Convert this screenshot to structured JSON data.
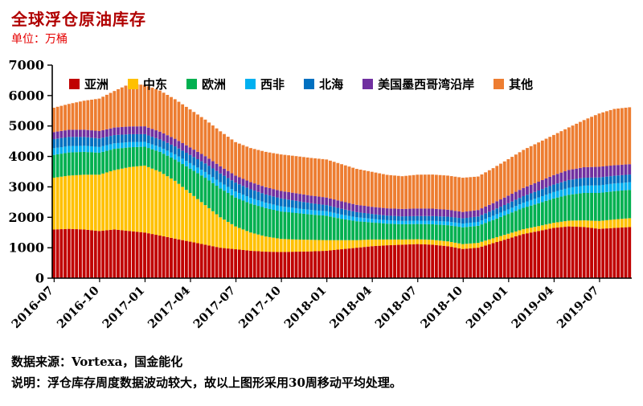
{
  "header": {
    "title": "全球浮仓原油库存",
    "unit": "单位：万桶",
    "accent_color": "#b00000"
  },
  "footnotes": {
    "source": "数据来源：Vortexa，国金能化",
    "note": "说明：浮仓库存周度数据波动较大，故以上图形采用30周移动平均处理。"
  },
  "chart_data": {
    "type": "area",
    "stacked": true,
    "title": "全球浮仓原油库存",
    "ylabel": "万桶",
    "ylim": [
      0,
      7000
    ],
    "y_ticks": [
      0,
      1000,
      2000,
      3000,
      4000,
      5000,
      6000,
      7000
    ],
    "grid": false,
    "legend_position": "top-inside",
    "x": [
      "2016-07",
      "2016-08",
      "2016-09",
      "2016-10",
      "2016-11",
      "2016-12",
      "2017-01",
      "2017-02",
      "2017-03",
      "2017-04",
      "2017-05",
      "2017-06",
      "2017-07",
      "2017-08",
      "2017-09",
      "2017-10",
      "2017-11",
      "2017-12",
      "2018-01",
      "2018-02",
      "2018-03",
      "2018-04",
      "2018-05",
      "2018-06",
      "2018-07",
      "2018-08",
      "2018-09",
      "2018-10",
      "2018-11",
      "2018-12",
      "2019-01",
      "2019-02",
      "2019-03",
      "2019-04",
      "2019-05",
      "2019-06",
      "2019-07",
      "2019-08",
      "2019-09"
    ],
    "x_tick_labels": [
      "2016-07",
      "2016-10",
      "2017-01",
      "2017-04",
      "2017-07",
      "2017-10",
      "2018-01",
      "2018-04",
      "2018-07",
      "2018-10",
      "2019-01",
      "2019-04",
      "2019-07"
    ],
    "series": [
      {
        "name": "亚洲",
        "color": "#C00000",
        "values": [
          1600,
          1620,
          1600,
          1550,
          1600,
          1550,
          1500,
          1400,
          1300,
          1200,
          1100,
          1000,
          950,
          900,
          870,
          860,
          870,
          880,
          900,
          950,
          1000,
          1050,
          1080,
          1100,
          1120,
          1100,
          1050,
          960,
          1000,
          1150,
          1300,
          1450,
          1550,
          1650,
          1700,
          1680,
          1620,
          1650,
          1680
        ]
      },
      {
        "name": "中东",
        "color": "#FFC000",
        "values": [
          1700,
          1750,
          1800,
          1850,
          1950,
          2100,
          2200,
          2100,
          1900,
          1600,
          1300,
          1000,
          750,
          600,
          500,
          430,
          400,
          380,
          350,
          300,
          250,
          220,
          190,
          170,
          160,
          160,
          160,
          160,
          160,
          160,
          160,
          160,
          160,
          170,
          190,
          220,
          260,
          280,
          290
        ]
      },
      {
        "name": "欧洲",
        "color": "#00B050",
        "values": [
          750,
          760,
          750,
          720,
          700,
          650,
          620,
          650,
          700,
          800,
          900,
          950,
          950,
          950,
          930,
          900,
          870,
          830,
          800,
          700,
          620,
          560,
          520,
          500,
          500,
          510,
          530,
          550,
          560,
          600,
          650,
          700,
          750,
          800,
          850,
          900,
          920,
          930,
          930
        ]
      },
      {
        "name": "西非",
        "color": "#00B0F0",
        "values": [
          220,
          210,
          200,
          190,
          180,
          170,
          160,
          160,
          170,
          180,
          190,
          200,
          200,
          190,
          180,
          170,
          160,
          150,
          150,
          140,
          130,
          120,
          115,
          110,
          110,
          115,
          120,
          125,
          130,
          140,
          150,
          170,
          190,
          210,
          230,
          240,
          250,
          250,
          250
        ]
      },
      {
        "name": "北海",
        "color": "#0070C0",
        "values": [
          300,
          300,
          290,
          280,
          270,
          260,
          250,
          250,
          260,
          270,
          280,
          290,
          290,
          280,
          270,
          260,
          240,
          220,
          200,
          190,
          170,
          160,
          150,
          150,
          150,
          155,
          160,
          170,
          175,
          185,
          200,
          215,
          230,
          245,
          255,
          260,
          260,
          255,
          255
        ]
      },
      {
        "name": "美国墨西哥湾沿岸",
        "color": "#7030A0",
        "values": [
          230,
          235,
          240,
          245,
          250,
          255,
          260,
          255,
          250,
          245,
          240,
          235,
          230,
          235,
          240,
          245,
          250,
          250,
          250,
          245,
          240,
          235,
          240,
          245,
          250,
          245,
          230,
          210,
          215,
          230,
          250,
          270,
          290,
          310,
          330,
          345,
          350,
          345,
          340
        ]
      },
      {
        "name": "其他",
        "color": "#ED7D31",
        "values": [
          800,
          850,
          950,
          1065,
          1200,
          1400,
          1360,
          1350,
          1300,
          1250,
          1200,
          1150,
          1100,
          1120,
          1160,
          1200,
          1220,
          1240,
          1250,
          1220,
          1180,
          1150,
          1100,
          1075,
          1110,
          1120,
          1120,
          1125,
          1100,
          1150,
          1200,
          1250,
          1290,
          1320,
          1400,
          1550,
          1750,
          1850,
          1870
        ]
      }
    ]
  }
}
